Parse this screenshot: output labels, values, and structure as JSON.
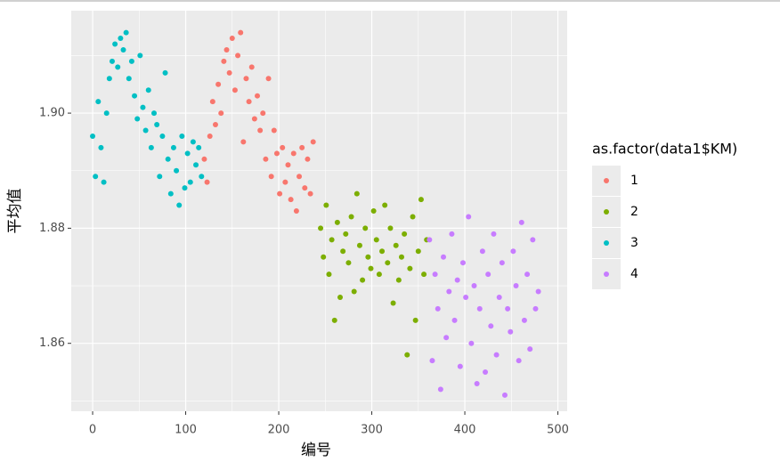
{
  "chart_data": {
    "type": "scatter",
    "x_label": "编号",
    "y_label": "平均值",
    "legend_title": "as.factor(data1$KM)",
    "legend_position": "right",
    "xlim": [
      -23,
      510
    ],
    "xticks": [
      0,
      100,
      200,
      300,
      400,
      500
    ],
    "x_minor_grid": [
      50,
      150,
      250,
      350,
      450
    ],
    "ylim": [
      1.8482,
      1.9178
    ],
    "yticks": [
      {
        "value": 1.86,
        "label": "1.86"
      },
      {
        "value": 1.88,
        "label": "1.88"
      },
      {
        "value": 1.9,
        "label": "1.90"
      }
    ],
    "y_minor_grid": [
      1.85,
      1.87,
      1.89,
      1.91
    ],
    "grid": true,
    "series": [
      {
        "name": "1",
        "color": "#F8766D",
        "x": [
          120,
          123,
          126,
          129,
          132,
          135,
          138,
          141,
          144,
          147,
          150,
          153,
          156,
          159,
          162,
          165,
          168,
          171,
          174,
          177,
          180,
          183,
          186,
          189,
          192,
          195,
          198,
          201,
          204,
          207,
          210,
          213,
          216,
          219,
          222,
          225,
          228,
          231,
          234,
          237
        ],
        "values": [
          1.892,
          1.888,
          1.896,
          1.902,
          1.898,
          1.905,
          1.9,
          1.909,
          1.911,
          1.907,
          1.913,
          1.904,
          1.91,
          1.914,
          1.895,
          1.906,
          1.902,
          1.908,
          1.899,
          1.903,
          1.897,
          1.9,
          1.892,
          1.906,
          1.889,
          1.897,
          1.893,
          1.886,
          1.894,
          1.888,
          1.891,
          1.885,
          1.893,
          1.883,
          1.889,
          1.894,
          1.887,
          1.892,
          1.886,
          1.895
        ]
      },
      {
        "name": "2",
        "color": "#7CAE00",
        "x": [
          245,
          248,
          251,
          254,
          257,
          260,
          263,
          266,
          269,
          272,
          275,
          278,
          281,
          284,
          287,
          290,
          293,
          296,
          299,
          302,
          305,
          308,
          311,
          314,
          317,
          320,
          323,
          326,
          329,
          332,
          335,
          338,
          341,
          344,
          347,
          350,
          353,
          356,
          359
        ],
        "values": [
          1.88,
          1.875,
          1.884,
          1.872,
          1.878,
          1.864,
          1.881,
          1.868,
          1.876,
          1.879,
          1.874,
          1.882,
          1.869,
          1.886,
          1.877,
          1.871,
          1.88,
          1.875,
          1.873,
          1.883,
          1.878,
          1.872,
          1.876,
          1.884,
          1.874,
          1.88,
          1.867,
          1.877,
          1.871,
          1.875,
          1.879,
          1.858,
          1.873,
          1.882,
          1.864,
          1.876,
          1.885,
          1.872,
          1.878
        ]
      },
      {
        "name": "3",
        "color": "#00BFC4",
        "x": [
          0,
          3,
          6,
          9,
          12,
          15,
          18,
          21,
          24,
          27,
          30,
          33,
          36,
          39,
          42,
          45,
          48,
          51,
          54,
          57,
          60,
          63,
          66,
          69,
          72,
          75,
          78,
          81,
          84,
          87,
          90,
          93,
          96,
          99,
          102,
          105,
          108,
          111,
          114,
          117
        ],
        "values": [
          1.896,
          1.889,
          1.902,
          1.894,
          1.888,
          1.9,
          1.906,
          1.909,
          1.912,
          1.908,
          1.913,
          1.911,
          1.914,
          1.906,
          1.909,
          1.903,
          1.899,
          1.91,
          1.901,
          1.897,
          1.904,
          1.894,
          1.9,
          1.898,
          1.889,
          1.896,
          1.907,
          1.892,
          1.886,
          1.894,
          1.89,
          1.884,
          1.896,
          1.887,
          1.893,
          1.888,
          1.895,
          1.891,
          1.894,
          1.889
        ]
      },
      {
        "name": "4",
        "color": "#C77CFF",
        "x": [
          362,
          365,
          368,
          371,
          374,
          377,
          380,
          383,
          386,
          389,
          392,
          395,
          398,
          401,
          404,
          407,
          410,
          413,
          416,
          419,
          422,
          425,
          428,
          431,
          434,
          437,
          440,
          443,
          446,
          449,
          452,
          455,
          458,
          461,
          464,
          467,
          470,
          473,
          476,
          479
        ],
        "values": [
          1.878,
          1.857,
          1.872,
          1.866,
          1.852,
          1.875,
          1.861,
          1.869,
          1.879,
          1.864,
          1.871,
          1.856,
          1.874,
          1.868,
          1.882,
          1.86,
          1.87,
          1.853,
          1.866,
          1.876,
          1.855,
          1.872,
          1.863,
          1.879,
          1.858,
          1.868,
          1.874,
          1.851,
          1.866,
          1.862,
          1.876,
          1.87,
          1.857,
          1.881,
          1.864,
          1.872,
          1.859,
          1.878,
          1.866,
          1.869
        ]
      }
    ]
  }
}
